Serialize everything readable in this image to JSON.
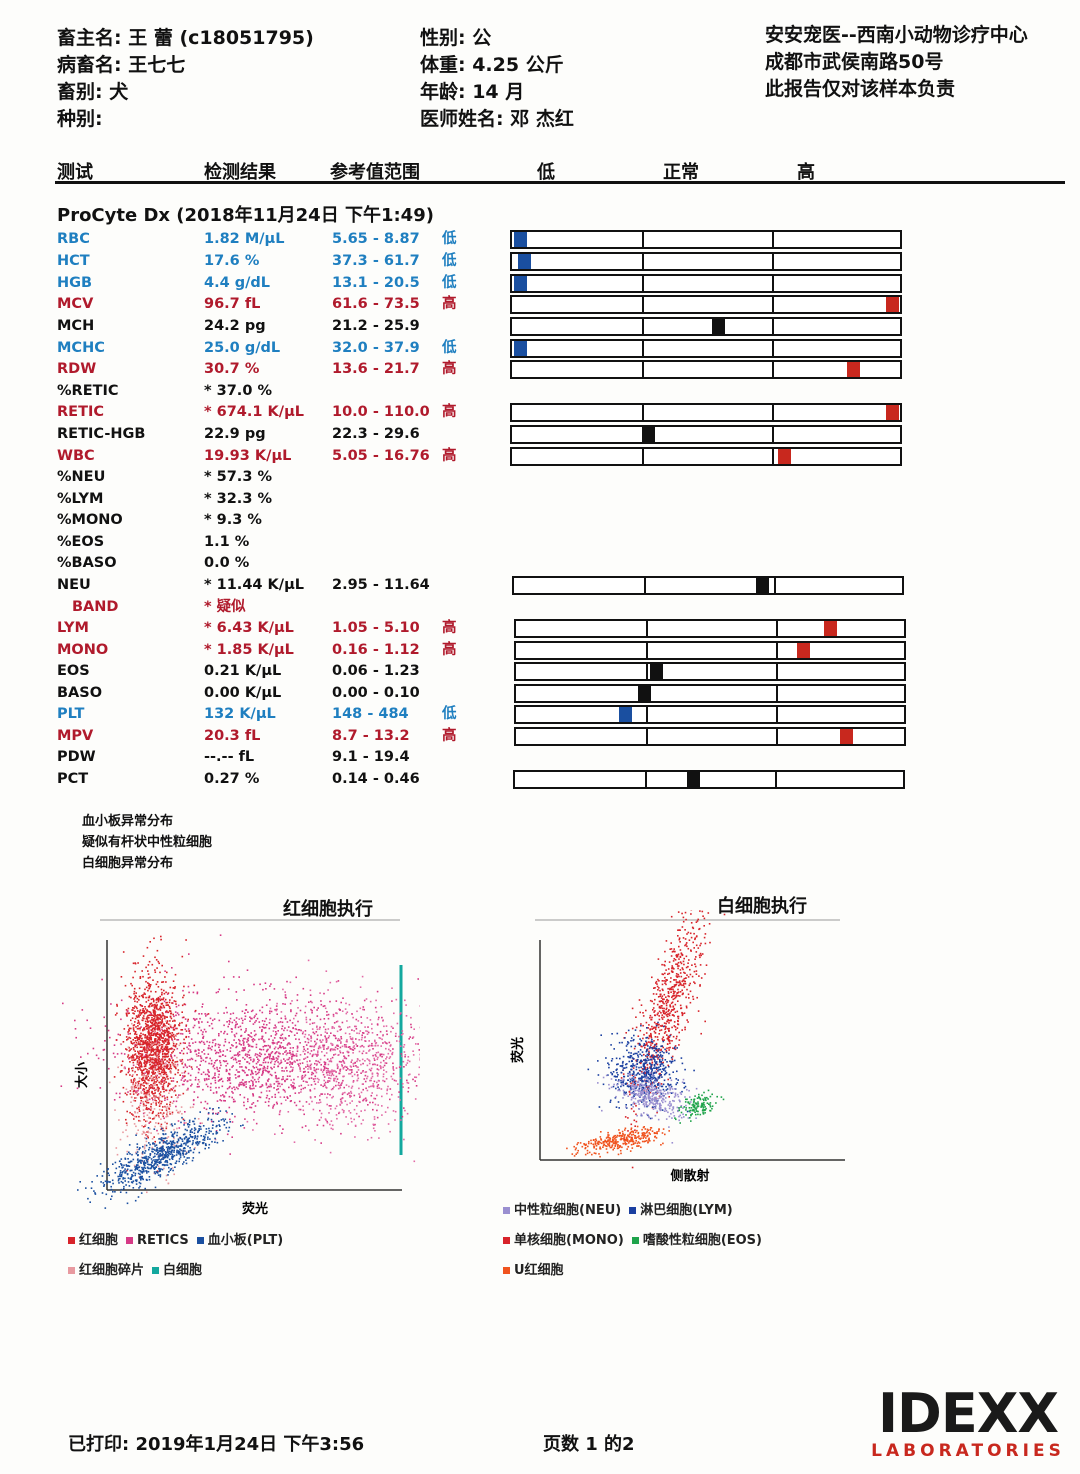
{
  "header": {
    "left": [
      "畜主名: 王 蕾 (c18051795)",
      "病畜名: 王七七",
      "畜别: 犬",
      "种别:"
    ],
    "middle": [
      "性别: 公",
      "体重: 4.25 公斤",
      "年龄: 14 月",
      "医师姓名: 邓 杰红"
    ],
    "right": [
      "安安宠医--西南小动物诊疗中心",
      "成都市武侯南路50号",
      "此报告仅对该样本负责"
    ]
  },
  "columns": {
    "test": "测试",
    "result": "检测结果",
    "ref": "参考值范围",
    "low": "低",
    "normal": "正常",
    "high": "高"
  },
  "section_title": "ProCyte Dx (2018年11月24日 下午1:49)",
  "colors": {
    "low": "#1a4fa0",
    "high": "#c8281e",
    "normal": "#111111"
  },
  "rows": [
    {
      "name": "RBC",
      "result": "1.82 M/μL",
      "ref": "5.65 - 8.87",
      "flag": "低",
      "status": "low",
      "pos": 0.02
    },
    {
      "name": "HCT",
      "result": "17.6 %",
      "ref": "37.3 - 61.7",
      "flag": "低",
      "status": "low",
      "pos": 0.03
    },
    {
      "name": "HGB",
      "result": "4.4 g/dL",
      "ref": "13.1 - 20.5",
      "flag": "低",
      "status": "low",
      "pos": 0.02
    },
    {
      "name": "MCV",
      "result": "96.7 fL",
      "ref": "61.6 - 73.5",
      "flag": "高",
      "status": "high",
      "pos": 0.98
    },
    {
      "name": "MCH",
      "result": "24.2 pg",
      "ref": "21.2 - 25.9",
      "flag": "",
      "status": "normal",
      "pos": 0.53
    },
    {
      "name": "MCHC",
      "result": "25.0 g/dL",
      "ref": "32.0 - 37.9",
      "flag": "低",
      "status": "low",
      "pos": 0.02
    },
    {
      "name": "RDW",
      "result": "30.7 %",
      "ref": "13.6 - 21.7",
      "flag": "高",
      "status": "high",
      "pos": 0.88
    },
    {
      "name": "%RETIC",
      "result": "* 37.0 %",
      "ref": "",
      "flag": "",
      "status": "normal"
    },
    {
      "name": "RETIC",
      "result": "* 674.1 K/μL",
      "ref": "10.0 - 110.0",
      "flag": "高",
      "status": "high",
      "pos": 0.98
    },
    {
      "name": "RETIC-HGB",
      "result": "22.9 pg",
      "ref": "22.3 - 29.6",
      "flag": "",
      "status": "normal",
      "pos": 0.35
    },
    {
      "name": "WBC",
      "result": "19.93 K/μL",
      "ref": "5.05 - 16.76",
      "flag": "高",
      "status": "high",
      "pos": 0.7
    },
    {
      "name": "%NEU",
      "result": "* 57.3 %",
      "ref": "",
      "flag": "",
      "status": "normal"
    },
    {
      "name": "%LYM",
      "result": "* 32.3 %",
      "ref": "",
      "flag": "",
      "status": "normal"
    },
    {
      "name": "%MONO",
      "result": "* 9.3 %",
      "ref": "",
      "flag": "",
      "status": "normal"
    },
    {
      "name": "%EOS",
      "result": "1.1 %",
      "ref": "",
      "flag": "",
      "status": "normal"
    },
    {
      "name": "%BASO",
      "result": "0.0 %",
      "ref": "",
      "flag": "",
      "status": "normal"
    },
    {
      "name": "NEU",
      "result": "* 11.44 K/μL",
      "ref": "2.95 - 11.64",
      "flag": "",
      "status": "normal",
      "pos": 0.64
    },
    {
      "name": "BAND",
      "result": "* 疑似",
      "ref": "",
      "flag": "",
      "status": "high",
      "indent": true
    },
    {
      "name": "LYM",
      "result": "* 6.43 K/μL",
      "ref": "1.05 - 5.10",
      "flag": "高",
      "status": "high",
      "pos": 0.81
    },
    {
      "name": "MONO",
      "result": "* 1.85 K/μL",
      "ref": "0.16 - 1.12",
      "flag": "高",
      "status": "high",
      "pos": 0.74
    },
    {
      "name": "EOS",
      "result": "0.21 K/μL",
      "ref": "0.06 - 1.23",
      "flag": "",
      "status": "normal",
      "pos": 0.36
    },
    {
      "name": "BASO",
      "result": "0.00 K/μL",
      "ref": "0.00 - 0.10",
      "flag": "",
      "status": "normal",
      "pos": 0.33
    },
    {
      "name": "PLT",
      "result": "132 K/μL",
      "ref": "148 - 484",
      "flag": "低",
      "status": "low",
      "pos": 0.28
    },
    {
      "name": "MPV",
      "result": "20.3 fL",
      "ref": "8.7 - 13.2",
      "flag": "高",
      "status": "high",
      "pos": 0.85
    },
    {
      "name": "PDW",
      "result": "--.-- fL",
      "ref": "9.1 - 19.4",
      "flag": "",
      "status": "normal"
    },
    {
      "name": "PCT",
      "result": "0.27 %",
      "ref": "0.14 - 0.46",
      "flag": "",
      "status": "normal",
      "pos": 0.46
    }
  ],
  "notes": [
    "血小板异常分布",
    "疑似有杆状中性粒细胞",
    "白细胞异常分布"
  ],
  "plots": {
    "rbc": {
      "title": "红细胞执行",
      "ylabel": "大小",
      "xlabel": "荧光",
      "legend_row1": [
        {
          "label": "红细胞",
          "color": "#d8232a"
        },
        {
          "label": "RETICS",
          "color": "#d63a86"
        },
        {
          "label": "血小板(PLT)",
          "color": "#1a4fa0"
        }
      ],
      "legend_row2": [
        {
          "label": "红细胞碎片",
          "color": "#e89aa0"
        },
        {
          "label": "白细胞",
          "color": "#13a89e"
        }
      ]
    },
    "wbc": {
      "title": "白细胞执行",
      "ylabel": "荧光",
      "xlabel": "侧散射",
      "legend_row1": [
        {
          "label": "中性粒细胞(NEU)",
          "color": "#9a8fd0"
        },
        {
          "label": "淋巴细胞(LYM)",
          "color": "#1a3fa0"
        }
      ],
      "legend_row2": [
        {
          "label": "单核细胞(MONO)",
          "color": "#d8232a"
        },
        {
          "label": "嗜酸性粒细胞(EOS)",
          "color": "#1ea34a"
        }
      ],
      "legend_row3": [
        {
          "label": "U红细胞",
          "color": "#f0531e"
        }
      ]
    }
  },
  "footer": {
    "printed": "已打印: 2019年1月24日 下午3:56",
    "page": "页数 1 的2"
  },
  "logo": {
    "brand": "IDEXX",
    "sub": "LABORATORIES"
  }
}
